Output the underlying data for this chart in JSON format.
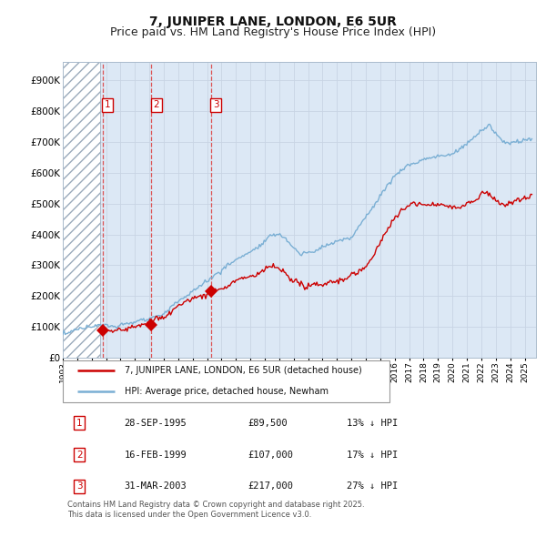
{
  "title": "7, JUNIPER LANE, LONDON, E6 5UR",
  "subtitle": "Price paid vs. HM Land Registry's House Price Index (HPI)",
  "title_fontsize": 10,
  "subtitle_fontsize": 9,
  "ylabel_ticks": [
    "£0",
    "£100K",
    "£200K",
    "£300K",
    "£400K",
    "£500K",
    "£600K",
    "£700K",
    "£800K",
    "£900K"
  ],
  "ytick_vals": [
    0,
    100000,
    200000,
    300000,
    400000,
    500000,
    600000,
    700000,
    800000,
    900000
  ],
  "ylim": [
    0,
    960000
  ],
  "xlim_start": 1993.0,
  "xlim_end": 2025.8,
  "hatch_end": 1995.6,
  "hatch_pattern": "///",
  "grid_color": "#c8d4e4",
  "plot_bg_color": "#dce8f5",
  "sale_line_color": "#cc0000",
  "hpi_line_color": "#7aafd4",
  "sale_marker_color": "#cc0000",
  "sale_marker_size": 7,
  "dashed_line_color": "#dd4444",
  "annotation_box_color": "#cc0000",
  "annotation_text_color": "#cc0000",
  "sales": [
    {
      "num": 1,
      "year": 1995.75,
      "price": 89500,
      "label": "1"
    },
    {
      "num": 2,
      "year": 1999.12,
      "price": 107000,
      "label": "2"
    },
    {
      "num": 3,
      "year": 2003.25,
      "price": 217000,
      "label": "3"
    }
  ],
  "legend_items": [
    {
      "label": "7, JUNIPER LANE, LONDON, E6 5UR (detached house)",
      "color": "#cc0000",
      "lw": 1.8
    },
    {
      "label": "HPI: Average price, detached house, Newham",
      "color": "#7aafd4",
      "lw": 1.8
    }
  ],
  "table_rows": [
    {
      "num": 1,
      "date": "28-SEP-1995",
      "price": "£89,500",
      "hpi": "13% ↓ HPI"
    },
    {
      "num": 2,
      "date": "16-FEB-1999",
      "price": "£107,000",
      "hpi": "17% ↓ HPI"
    },
    {
      "num": 3,
      "date": "31-MAR-2003",
      "price": "£217,000",
      "hpi": "27% ↓ HPI"
    }
  ],
  "footer": "Contains HM Land Registry data © Crown copyright and database right 2025.\nThis data is licensed under the Open Government Licence v3.0.",
  "fig_bg_color": "#ffffff"
}
